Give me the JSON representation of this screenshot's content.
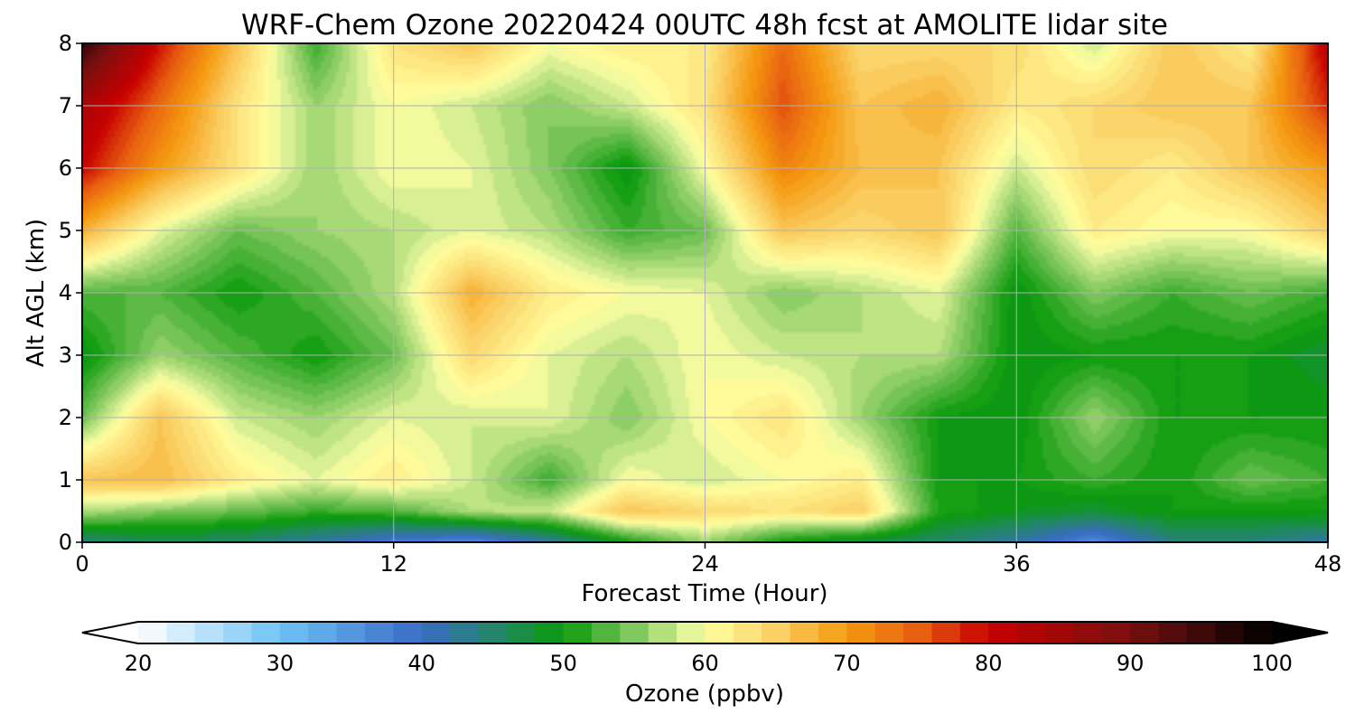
{
  "chart_data": {
    "type": "heatmap",
    "title": "WRF-Chem Ozone  20220424 00UTC 48h fcst at AMOLITE lidar site",
    "xlabel": "Forecast Time (Hour)",
    "ylabel": "Alt AGL (km)",
    "xlim": [
      0,
      48
    ],
    "ylim": [
      0,
      8
    ],
    "x_ticks": [
      0,
      12,
      24,
      36,
      48
    ],
    "y_ticks": [
      0,
      1,
      2,
      3,
      4,
      5,
      6,
      7,
      8
    ],
    "grid": true,
    "colorbar": {
      "label": "Ozone  (ppbv)",
      "range": [
        20,
        100
      ],
      "ticks": [
        20,
        30,
        40,
        50,
        60,
        70,
        80,
        90,
        100
      ],
      "extend": "both",
      "stops": [
        {
          "v": 20,
          "c": "#ffffff"
        },
        {
          "v": 30,
          "c": "#6ec3f5"
        },
        {
          "v": 40,
          "c": "#3a6bc6"
        },
        {
          "v": 46,
          "c": "#1f8a5a"
        },
        {
          "v": 50,
          "c": "#0a9a0a"
        },
        {
          "v": 55,
          "c": "#82c860"
        },
        {
          "v": 59,
          "c": "#e4f59a"
        },
        {
          "v": 60,
          "c": "#ffffa0"
        },
        {
          "v": 65,
          "c": "#fbd065"
        },
        {
          "v": 70,
          "c": "#f59a10"
        },
        {
          "v": 75,
          "c": "#e86010"
        },
        {
          "v": 80,
          "c": "#c80000"
        },
        {
          "v": 90,
          "c": "#781010"
        },
        {
          "v": 100,
          "c": "#000000"
        }
      ]
    },
    "grid_x": [
      0,
      3,
      6,
      9,
      12,
      15,
      18,
      21,
      24,
      27,
      30,
      33,
      36,
      39,
      42,
      45,
      48
    ],
    "grid_y": [
      0,
      0.5,
      1,
      2,
      3,
      4,
      5,
      6,
      7,
      8
    ],
    "z": [
      [
        44,
        46,
        45,
        42,
        38,
        36,
        42,
        50,
        56,
        50,
        47,
        45,
        42,
        36,
        44,
        44,
        42
      ],
      [
        57,
        55,
        54,
        52,
        53,
        57,
        58,
        66,
        64,
        63,
        65,
        51,
        49,
        48,
        50,
        50,
        50
      ],
      [
        66,
        67,
        62,
        59,
        62,
        58,
        52,
        60,
        58,
        60,
        62,
        50,
        50,
        52,
        50,
        54,
        52
      ],
      [
        54,
        66,
        58,
        56,
        59,
        58,
        59,
        55,
        60,
        63,
        56,
        50,
        49,
        56,
        50,
        50,
        50
      ],
      [
        49,
        56,
        53,
        50,
        54,
        64,
        59,
        57,
        60,
        58,
        57,
        57,
        49,
        50,
        50,
        50,
        48
      ],
      [
        53,
        53,
        50,
        53,
        57,
        68,
        62,
        60,
        59,
        55,
        57,
        59,
        49,
        55,
        52,
        54,
        52
      ],
      [
        68,
        59,
        54,
        56,
        57,
        59,
        57,
        52,
        54,
        66,
        64,
        66,
        53,
        62,
        60,
        60,
        65
      ],
      [
        80,
        70,
        63,
        56,
        60,
        59,
        55,
        49,
        60,
        72,
        67,
        66,
        58,
        64,
        62,
        66,
        70
      ],
      [
        84,
        74,
        63,
        56,
        60,
        58,
        55,
        58,
        63,
        76,
        66,
        68,
        62,
        64,
        66,
        66,
        78
      ],
      [
        96,
        79,
        66,
        52,
        63,
        66,
        60,
        62,
        62,
        74,
        64,
        64,
        64,
        58,
        66,
        62,
        82
      ]
    ]
  }
}
